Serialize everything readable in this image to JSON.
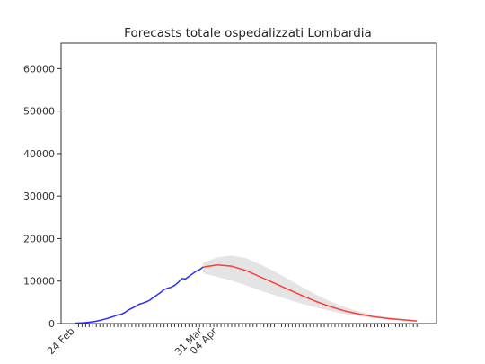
{
  "chart_data": {
    "type": "line",
    "title": "Forecasts totale ospedalizzati Lombardia",
    "xlabel": "",
    "ylabel": "",
    "ylim": [
      0,
      66000
    ],
    "y_ticks": [
      0,
      10000,
      20000,
      30000,
      40000,
      50000,
      60000
    ],
    "x_tick_labels": [
      {
        "day": 0,
        "label": "24 Feb"
      },
      {
        "day": 36,
        "label": "31 Mar"
      },
      {
        "day": 40,
        "label": "04 Apr"
      }
    ],
    "x_minor_tick_days": {
      "from": 0,
      "to": 96
    },
    "grid": false,
    "colors": {
      "observed": "#2b2bff",
      "forecast": "#ff3b3b",
      "band": "#e4e4e4"
    },
    "series": [
      {
        "kind": "observed",
        "x_day": [
          0,
          1,
          2,
          3,
          4,
          5,
          6,
          7,
          8,
          9,
          10,
          11,
          12,
          13,
          14,
          15,
          16,
          17,
          18,
          19,
          20,
          21,
          22,
          23,
          24,
          25,
          26,
          27,
          28,
          29,
          30,
          31,
          32,
          33,
          34,
          35,
          36
        ],
        "values": [
          70,
          120,
          170,
          230,
          310,
          420,
          560,
          740,
          960,
          1180,
          1450,
          1700,
          2050,
          2180,
          2600,
          3190,
          3600,
          4030,
          4550,
          4800,
          5100,
          5500,
          6150,
          6700,
          7300,
          8000,
          8300,
          8550,
          9000,
          9700,
          10600,
          10500,
          11100,
          11700,
          12300,
          12700,
          13300
        ]
      },
      {
        "kind": "forecast",
        "x_day": [
          36,
          40,
          44,
          48,
          52,
          56,
          60,
          64,
          68,
          72,
          76,
          80,
          84,
          88,
          92,
          96
        ],
        "values": [
          13300,
          13800,
          13500,
          12500,
          11000,
          9500,
          8000,
          6500,
          5100,
          3900,
          2900,
          2200,
          1600,
          1200,
          900,
          600
        ]
      },
      {
        "kind": "confidence_band",
        "x_day": [
          36,
          40,
          44,
          48,
          52,
          56,
          60,
          64,
          68,
          72,
          76,
          80,
          84,
          88,
          92,
          96
        ],
        "lower": [
          11800,
          11000,
          10100,
          9000,
          7800,
          6700,
          5600,
          4600,
          3700,
          2900,
          2200,
          1700,
          1300,
          950,
          700,
          500
        ],
        "upper": [
          14300,
          15600,
          16000,
          15400,
          14000,
          12300,
          10400,
          8500,
          6700,
          5100,
          3800,
          2800,
          2000,
          1500,
          1050,
          700
        ]
      }
    ]
  }
}
